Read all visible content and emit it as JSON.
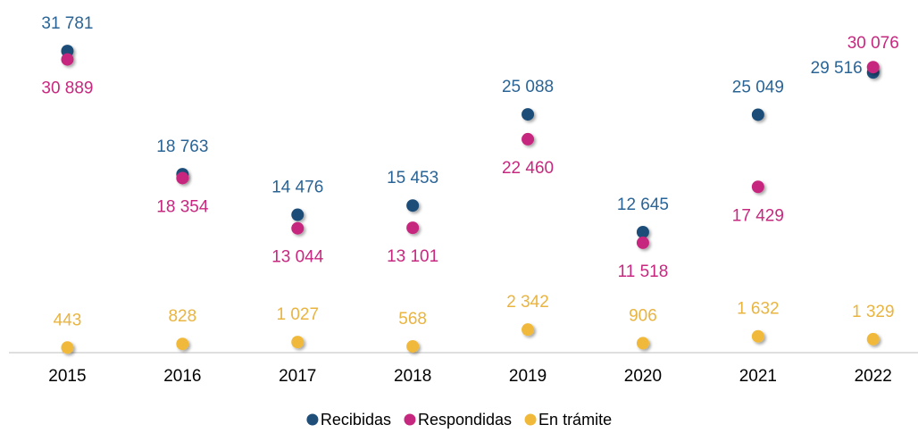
{
  "chart_data": {
    "type": "dot",
    "categories": [
      "2015",
      "2016",
      "2017",
      "2018",
      "2019",
      "2020",
      "2021",
      "2022"
    ],
    "series": [
      {
        "name": "Recibidas",
        "color": "#1f4e79",
        "label_color": "#2a6496",
        "values": [
          31781,
          18763,
          14476,
          15453,
          25088,
          12645,
          25049,
          29516
        ],
        "value_labels": [
          "31 781",
          "18 763",
          "14 476",
          "15 453",
          "25 088",
          "12 645",
          "25 049",
          "29 516"
        ]
      },
      {
        "name": "Respondidas",
        "color": "#c7287f",
        "label_color": "#c7287f",
        "values": [
          30889,
          18354,
          13044,
          13101,
          22460,
          11518,
          17429,
          30076
        ],
        "value_labels": [
          "30 889",
          "18 354",
          "13 044",
          "13 101",
          "22 460",
          "11 518",
          "17 429",
          "30 076"
        ]
      },
      {
        "name": "En trámite",
        "color": "#f0b93a",
        "label_color": "#e9b440",
        "values": [
          443,
          828,
          1027,
          568,
          2342,
          906,
          1632,
          1329
        ],
        "value_labels": [
          "443",
          "828",
          "1 027",
          "568",
          "2 342",
          "906",
          "1 632",
          "1 329"
        ]
      }
    ],
    "ylim": [
      0,
      35000
    ]
  }
}
